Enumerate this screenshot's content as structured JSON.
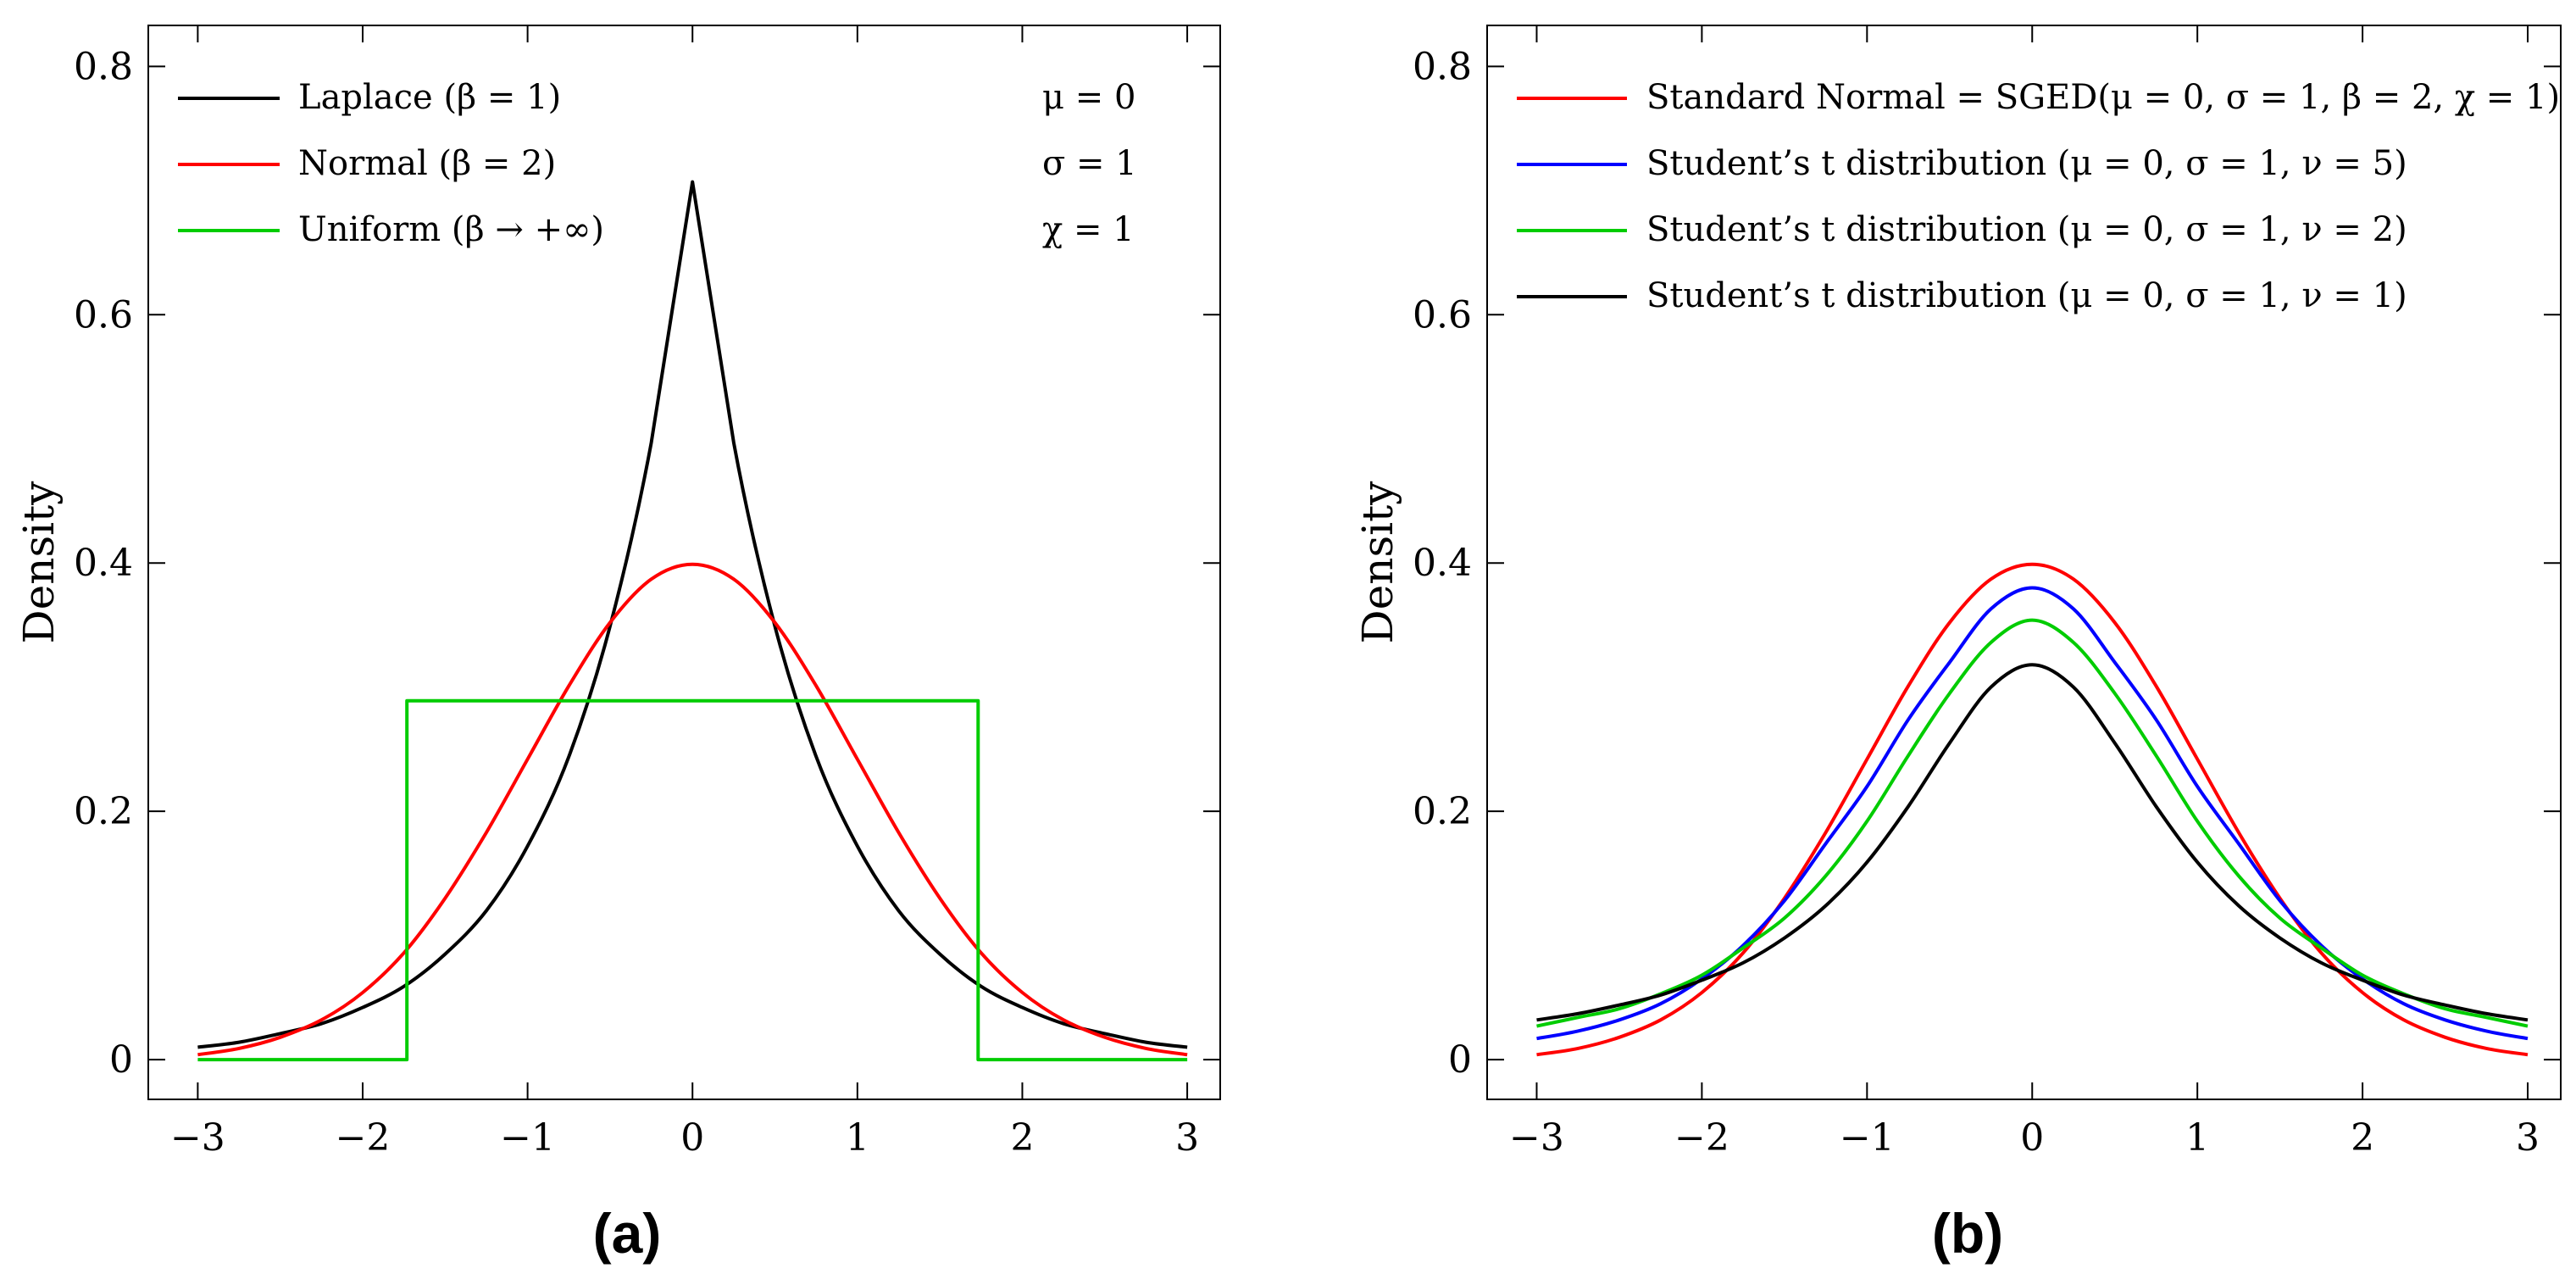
{
  "chart_data": [
    {
      "panel": "(a)",
      "type": "line",
      "ylabel": "Density",
      "xlim": [
        -3.3,
        3.2
      ],
      "ylim": [
        -0.032,
        0.833
      ],
      "xticks": [
        -3,
        -2,
        -1,
        0,
        1,
        2,
        3
      ],
      "xtick_labels": [
        "−3",
        "−2",
        "−1",
        "0",
        "1",
        "2",
        "3"
      ],
      "yticks": [
        0,
        0.2,
        0.4,
        0.6,
        0.8
      ],
      "ytick_labels": [
        "0",
        "0.2",
        "0.4",
        "0.6",
        "0.8"
      ],
      "grid": false,
      "legend_position": "top-left",
      "annotations": [
        "μ = 0",
        "σ = 1",
        "χ = 1"
      ],
      "series": [
        {
          "name": "Laplace (β = 1)",
          "color": "#000000",
          "x": [
            -3,
            -2.75,
            -2.5,
            -2.25,
            -2,
            -1.75,
            -1.5,
            -1.25,
            -1,
            -0.75,
            -0.5,
            -0.25,
            0,
            0.25,
            0.5,
            0.75,
            1,
            1.25,
            1.5,
            1.75,
            2,
            2.25,
            2.5,
            2.75,
            3
          ],
          "y": [
            0.01,
            0.014,
            0.021,
            0.029,
            0.042,
            0.059,
            0.085,
            0.12,
            0.172,
            0.244,
            0.349,
            0.497,
            0.707,
            0.497,
            0.349,
            0.244,
            0.172,
            0.12,
            0.085,
            0.059,
            0.042,
            0.029,
            0.021,
            0.014,
            0.01
          ]
        },
        {
          "name": "Normal (β = 2)",
          "color": "#ff0000",
          "x": [
            -3,
            -2.75,
            -2.5,
            -2.25,
            -2,
            -1.75,
            -1.5,
            -1.25,
            -1,
            -0.75,
            -0.5,
            -0.25,
            0,
            0.25,
            0.5,
            0.75,
            1,
            1.25,
            1.5,
            1.75,
            2,
            2.25,
            2.5,
            2.75,
            3
          ],
          "y": [
            0.004,
            0.009,
            0.018,
            0.032,
            0.054,
            0.086,
            0.13,
            0.183,
            0.242,
            0.301,
            0.352,
            0.387,
            0.399,
            0.387,
            0.352,
            0.301,
            0.242,
            0.183,
            0.13,
            0.086,
            0.054,
            0.032,
            0.018,
            0.009,
            0.004
          ]
        },
        {
          "name": "Uniform (β → +∞)",
          "color": "#00cc00",
          "x": [
            -3,
            -1.732,
            -1.732,
            1.732,
            1.732,
            3
          ],
          "y": [
            0,
            0,
            0.289,
            0.289,
            0,
            0
          ]
        }
      ]
    },
    {
      "panel": "(b)",
      "type": "line",
      "ylabel": "Density",
      "xlim": [
        -3.3,
        3.2
      ],
      "ylim": [
        -0.032,
        0.833
      ],
      "xticks": [
        -3,
        -2,
        -1,
        0,
        1,
        2,
        3
      ],
      "xtick_labels": [
        "−3",
        "−2",
        "−1",
        "0",
        "1",
        "2",
        "3"
      ],
      "yticks": [
        0,
        0.2,
        0.4,
        0.6,
        0.8
      ],
      "ytick_labels": [
        "0",
        "0.2",
        "0.4",
        "0.6",
        "0.8"
      ],
      "grid": false,
      "legend_position": "top-left",
      "series": [
        {
          "name": "Standard Normal = SGED(μ = 0, σ = 1, β = 2, χ = 1)",
          "color": "#ff0000",
          "x": [
            -3,
            -2.75,
            -2.5,
            -2.25,
            -2,
            -1.75,
            -1.5,
            -1.25,
            -1,
            -0.75,
            -0.5,
            -0.25,
            0,
            0.25,
            0.5,
            0.75,
            1,
            1.25,
            1.5,
            1.75,
            2,
            2.25,
            2.5,
            2.75,
            3
          ],
          "y": [
            0.004,
            0.009,
            0.018,
            0.032,
            0.054,
            0.086,
            0.13,
            0.183,
            0.242,
            0.301,
            0.352,
            0.387,
            0.399,
            0.387,
            0.352,
            0.301,
            0.242,
            0.183,
            0.13,
            0.086,
            0.054,
            0.032,
            0.018,
            0.009,
            0.004
          ]
        },
        {
          "name": "Student’s t distribution (μ = 0, σ = 1, ν = 5)",
          "color": "#0000ff",
          "x": [
            -3,
            -2.75,
            -2.5,
            -2.25,
            -2,
            -1.75,
            -1.5,
            -1.25,
            -1,
            -0.75,
            -0.5,
            -0.25,
            0,
            0.25,
            0.5,
            0.75,
            1,
            1.25,
            1.5,
            1.75,
            2,
            2.25,
            2.5,
            2.75,
            3
          ],
          "y": [
            0.017,
            0.023,
            0.032,
            0.045,
            0.065,
            0.092,
            0.128,
            0.174,
            0.22,
            0.274,
            0.32,
            0.363,
            0.38,
            0.363,
            0.32,
            0.274,
            0.22,
            0.174,
            0.128,
            0.092,
            0.065,
            0.045,
            0.032,
            0.023,
            0.017
          ]
        },
        {
          "name": "Student’s t distribution (μ = 0, σ = 1, ν = 2)",
          "color": "#00cc00",
          "x": [
            -3,
            -2.75,
            -2.5,
            -2.25,
            -2,
            -1.75,
            -1.5,
            -1.25,
            -1,
            -0.75,
            -0.5,
            -0.25,
            0,
            0.25,
            0.5,
            0.75,
            1,
            1.25,
            1.5,
            1.75,
            2,
            2.25,
            2.5,
            2.75,
            3
          ],
          "y": [
            0.027,
            0.034,
            0.041,
            0.053,
            0.068,
            0.09,
            0.114,
            0.148,
            0.192,
            0.245,
            0.295,
            0.336,
            0.354,
            0.336,
            0.295,
            0.245,
            0.192,
            0.148,
            0.114,
            0.09,
            0.068,
            0.053,
            0.041,
            0.034,
            0.027
          ]
        },
        {
          "name": "Student’s t distribution (μ = 0, σ = 1, ν = 1)",
          "color": "#000000",
          "x": [
            -3,
            -2.75,
            -2.5,
            -2.25,
            -2,
            -1.75,
            -1.5,
            -1.25,
            -1,
            -0.75,
            -0.5,
            -0.25,
            0,
            0.25,
            0.5,
            0.75,
            1,
            1.25,
            1.5,
            1.75,
            2,
            2.25,
            2.5,
            2.75,
            3
          ],
          "y": [
            0.032,
            0.037,
            0.044,
            0.052,
            0.064,
            0.078,
            0.098,
            0.124,
            0.159,
            0.204,
            0.255,
            0.3,
            0.318,
            0.3,
            0.255,
            0.204,
            0.159,
            0.124,
            0.098,
            0.078,
            0.064,
            0.052,
            0.044,
            0.037,
            0.032
          ]
        }
      ]
    }
  ]
}
